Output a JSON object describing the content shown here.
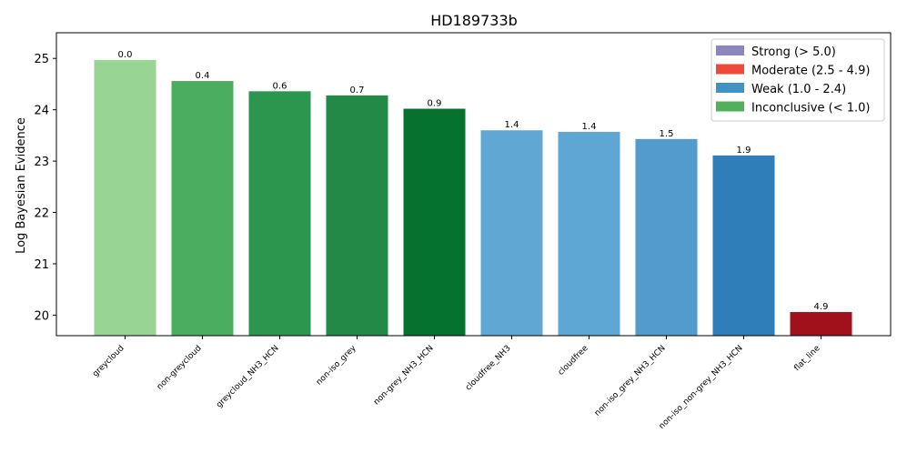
{
  "chart_data": {
    "type": "bar",
    "title": "HD189733b",
    "xlabel": "",
    "ylabel": "Log Bayesian Evidence",
    "ylim": [
      19.6,
      25.5
    ],
    "yticks": [
      20,
      21,
      22,
      23,
      24,
      25
    ],
    "grid": false,
    "legend_position": "top-right",
    "categories": [
      "greycloud",
      "non-greycloud",
      "greycloud_NH3_HCN",
      "non-iso_grey",
      "non-grey_NH3_HCN",
      "cloudfree_NH3",
      "cloudfree",
      "non-iso_grey_NH3_HCN",
      "non-iso_non-grey_NH3_HCN",
      "flat_line"
    ],
    "values": [
      24.97,
      24.56,
      24.36,
      24.28,
      24.02,
      23.6,
      23.57,
      23.43,
      23.11,
      20.06
    ],
    "data_labels": [
      "0.0",
      "0.4",
      "0.6",
      "0.7",
      "0.9",
      "1.4",
      "1.4",
      "1.5",
      "1.9",
      "4.9"
    ],
    "bar_colors": [
      "#98d594",
      "#4bae5f",
      "#2d964e",
      "#228a46",
      "#067230",
      "#60a7d3",
      "#5ea6d3",
      "#519bcd",
      "#2f7eba",
      "#a1111b"
    ],
    "legend": [
      {
        "label": "Strong (> 5.0)",
        "color": "#8b86bd"
      },
      {
        "label": "Moderate (2.5 - 4.9)",
        "color": "#ef4a39"
      },
      {
        "label": "Weak (1.0 - 2.4)",
        "color": "#4292c6"
      },
      {
        "label": "Inconclusive (< 1.0)",
        "color": "#52b05d"
      }
    ]
  }
}
